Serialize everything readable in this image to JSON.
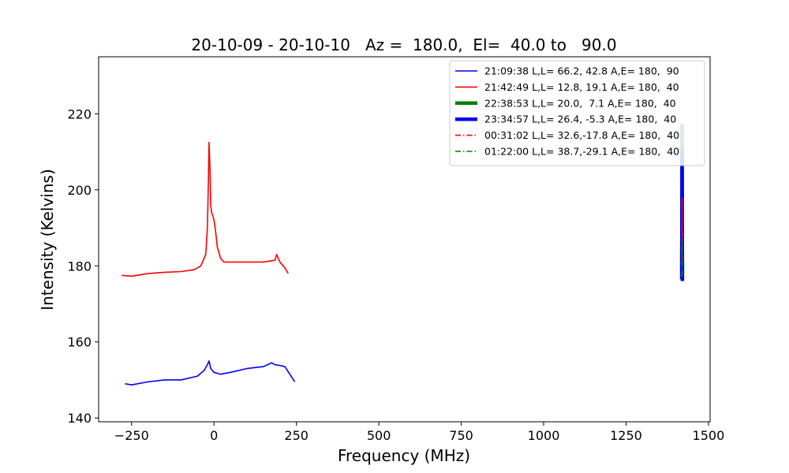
{
  "chart_data": {
    "type": "line",
    "title": "20-10-09 - 20-10-10   Az =  180.0,  El=  40.0 to   90.0",
    "xlabel": "Frequency (MHz)",
    "ylabel": "Intensity (Kelvins)",
    "xlim": [
      -350,
      1505
    ],
    "ylim": [
      139,
      235
    ],
    "xticks": [
      -250,
      0,
      250,
      500,
      750,
      1000,
      1250,
      1500
    ],
    "xtick_labels": [
      "−250",
      "0",
      "250",
      "500",
      "750",
      "1000",
      "1250",
      "1500"
    ],
    "yticks": [
      140,
      160,
      180,
      200,
      220
    ],
    "ytick_labels": [
      "140",
      "160",
      "180",
      "200",
      "220"
    ],
    "legend_position": "upper-right",
    "series": [
      {
        "name": "21:09:38 L,L= 66.2, 42.8 A,E= 180,  90",
        "color": "#0000ff",
        "style": "solid",
        "width": "thin",
        "x": [
          -270,
          -250,
          -200,
          -150,
          -100,
          -50,
          -30,
          -20,
          -15,
          -10,
          0,
          20,
          50,
          100,
          150,
          175,
          185,
          200,
          215,
          230,
          245
        ],
        "y": [
          149,
          148.7,
          149.5,
          150,
          150,
          151,
          152.5,
          154,
          155,
          153,
          152,
          151.5,
          152,
          153,
          153.5,
          154.5,
          154,
          153.8,
          153.5,
          151.5,
          149.5
        ]
      },
      {
        "name": "21:42:49 L,L= 12.8, 19.1 A,E= 180,  40",
        "color": "#ff0000",
        "style": "solid",
        "width": "thin",
        "x": [
          -280,
          -250,
          -200,
          -150,
          -100,
          -60,
          -40,
          -25,
          -20,
          -17,
          -15,
          -12,
          -10,
          -7,
          -3,
          0,
          5,
          10,
          20,
          30,
          50,
          100,
          150,
          185,
          190,
          200,
          215,
          225
        ],
        "y": [
          177.5,
          177.3,
          178,
          178.3,
          178.5,
          179,
          180,
          183,
          190,
          202,
          212.5,
          205,
          196,
          194,
          193,
          192,
          189,
          185,
          182,
          181,
          181,
          181,
          181,
          181.5,
          183,
          181,
          179.5,
          178
        ]
      },
      {
        "name": "22:38:53 L,L= 20.0,  7.1 A,E= 180,  40",
        "color": "#008000",
        "style": "solid",
        "width": "thick",
        "x": [
          1419,
          1419.5,
          1420,
          1420.5,
          1421
        ],
        "y": [
          178,
          190,
          217,
          190,
          178
        ]
      },
      {
        "name": "23:34:57 L,L= 26.4, -5.3 A,E= 180,  40",
        "color": "#0000ff",
        "style": "solid",
        "width": "thick",
        "x": [
          1419,
          1419.5,
          1420,
          1420.5,
          1421
        ],
        "y": [
          176.5,
          190,
          210,
          188,
          176
        ]
      },
      {
        "name": "00:31:02 L,L= 32.6,-17.8 A,E= 180,  40",
        "color": "#ff0000",
        "style": "dashdot",
        "width": "thin",
        "x": [
          1419,
          1419.5,
          1420,
          1420.5,
          1421
        ],
        "y": [
          180,
          188,
          198,
          188,
          180
        ]
      },
      {
        "name": "01:22:00 L,L= 38.7,-29.1 A,E= 180,  40",
        "color": "#008000",
        "style": "dashdot",
        "width": "thin",
        "x": [
          1419,
          1419.5,
          1420,
          1420.5,
          1421
        ],
        "y": [
          177,
          182,
          187,
          182,
          177
        ]
      }
    ]
  }
}
